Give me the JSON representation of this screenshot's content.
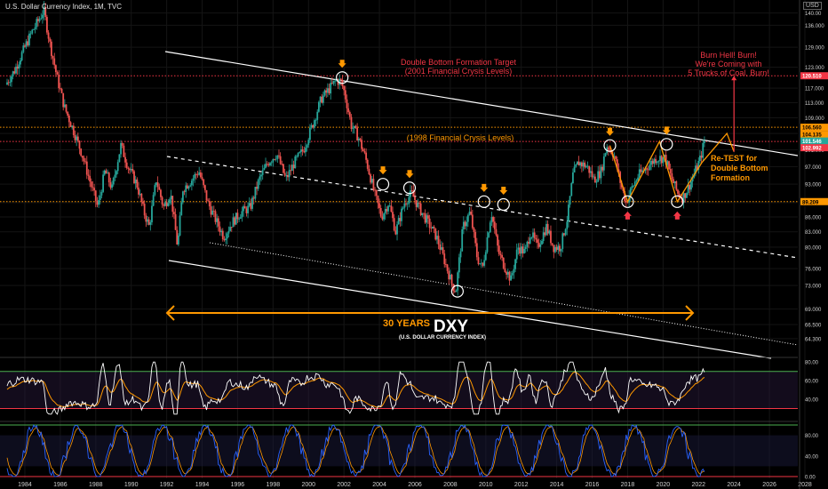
{
  "header": {
    "title": "U.S. Dollar Currency Index, 1M, TVC"
  },
  "axis_currency": "USD",
  "colors": {
    "background": "#000000",
    "candle_up": "#26a69a",
    "candle_down": "#ef5350",
    "annotation_orange": "#ff9800",
    "annotation_red": "#f23645",
    "white_line": "#ffffff",
    "rsi_line": "#ffffff",
    "rsi_signal": "#ff9800",
    "stoch_k": "#2962ff",
    "stoch_d": "#ff9800"
  },
  "price_labels": {
    "p1": "120.510",
    "p2": "106.560",
    "p3": "104.135",
    "p4": "101.546",
    "p5": "102.992",
    "p6": "89.209"
  },
  "annotations": {
    "target_line1": "Double Bottom Formation Target",
    "target_line2": "(2001 Financial Crysis Levels)",
    "level_1998": "(1998 Financial Crysis Levels)",
    "burn_line1": "Burn Hell! Burn!",
    "burn_line2": "We're Coming with",
    "burn_line3": "5 Trucks of Coal, Burn!",
    "retest_line1": "Re-TEST for",
    "retest_line2": "Double Bottom",
    "retest_line3": "Formation",
    "years_label": "30 YEARS",
    "dxy_label": "DXY",
    "dxy_sub": "(U.S. DOLLAR CURRENCY INDEX)"
  },
  "chart_data": {
    "type": "candlestick",
    "title": "U.S. Dollar Currency Index, 1M, TVC",
    "x_range": [
      1983,
      2028
    ],
    "x_ticks": [
      "1984",
      "1986",
      "1988",
      "1990",
      "1992",
      "1994",
      "1996",
      "1998",
      "2000",
      "2002",
      "2004",
      "2006",
      "2008",
      "2010",
      "2012",
      "2014",
      "2016",
      "2018",
      "2020",
      "2022",
      "2024",
      "2026",
      "2028"
    ],
    "y_scale": "log",
    "y_range": [
      62,
      142
    ],
    "y_ticks": [
      "140.00",
      "136.000",
      "129.000",
      "123.000",
      "117.000",
      "113.000",
      "109.000",
      "105.000",
      "101.000",
      "97.000",
      "93.000",
      "89.000",
      "86.000",
      "83.000",
      "80.000",
      "76.000",
      "73.000",
      "69.000",
      "66.500",
      "64.300"
    ],
    "series": [
      {
        "type": "close",
        "points": [
          [
            1983.0,
            118
          ],
          [
            1983.5,
            122
          ],
          [
            1984.0,
            128
          ],
          [
            1984.5,
            134
          ],
          [
            1984.9,
            138
          ],
          [
            1985.15,
            141
          ],
          [
            1985.5,
            130
          ],
          [
            1985.9,
            120
          ],
          [
            1986.3,
            112
          ],
          [
            1986.8,
            106
          ],
          [
            1987.3,
            100
          ],
          [
            1987.8,
            93
          ],
          [
            1988.2,
            88
          ],
          [
            1988.6,
            96
          ],
          [
            1989.0,
            92
          ],
          [
            1989.5,
            102
          ],
          [
            1989.9,
            97
          ],
          [
            1990.4,
            93
          ],
          [
            1990.8,
            87
          ],
          [
            1991.1,
            84
          ],
          [
            1991.5,
            94
          ],
          [
            1991.9,
            88
          ],
          [
            1992.3,
            91
          ],
          [
            1992.7,
            80
          ],
          [
            1993.0,
            92
          ],
          [
            1993.5,
            94
          ],
          [
            1993.9,
            96
          ],
          [
            1994.4,
            89
          ],
          [
            1994.9,
            85
          ],
          [
            1995.3,
            82
          ],
          [
            1995.8,
            85
          ],
          [
            1996.3,
            87
          ],
          [
            1996.8,
            88
          ],
          [
            1997.3,
            94
          ],
          [
            1997.8,
            98
          ],
          [
            1998.3,
            100
          ],
          [
            1998.8,
            94
          ],
          [
            1999.3,
            98
          ],
          [
            1999.8,
            101
          ],
          [
            2000.3,
            107
          ],
          [
            2000.8,
            114
          ],
          [
            2001.3,
            117
          ],
          [
            2001.6,
            119
          ],
          [
            2001.9,
            119
          ],
          [
            2002.1,
            116
          ],
          [
            2002.5,
            107
          ],
          [
            2002.9,
            104
          ],
          [
            2003.3,
            99
          ],
          [
            2003.8,
            91
          ],
          [
            2004.2,
            86
          ],
          [
            2004.6,
            89
          ],
          [
            2005.0,
            83
          ],
          [
            2005.5,
            89
          ],
          [
            2005.9,
            91
          ],
          [
            2006.3,
            88
          ],
          [
            2006.8,
            85
          ],
          [
            2007.3,
            82
          ],
          [
            2007.8,
            77
          ],
          [
            2008.2,
            73
          ],
          [
            2008.4,
            72
          ],
          [
            2008.8,
            84
          ],
          [
            2009.2,
            87
          ],
          [
            2009.6,
            78
          ],
          [
            2009.9,
            76
          ],
          [
            2010.4,
            87
          ],
          [
            2010.8,
            79
          ],
          [
            2011.2,
            76
          ],
          [
            2011.5,
            74
          ],
          [
            2011.9,
            80
          ],
          [
            2012.3,
            79
          ],
          [
            2012.6,
            83
          ],
          [
            2013.0,
            80
          ],
          [
            2013.5,
            84
          ],
          [
            2013.9,
            80
          ],
          [
            2014.3,
            80
          ],
          [
            2014.7,
            86
          ],
          [
            2015.0,
            95
          ],
          [
            2015.3,
            98
          ],
          [
            2015.8,
            97
          ],
          [
            2016.2,
            94
          ],
          [
            2016.6,
            96
          ],
          [
            2016.9,
            102
          ],
          [
            2017.3,
            100
          ],
          [
            2017.7,
            93
          ],
          [
            2018.0,
            89
          ],
          [
            2018.3,
            92
          ],
          [
            2018.7,
            95
          ],
          [
            2019.2,
            97
          ],
          [
            2019.7,
            99
          ],
          [
            2020.2,
            99
          ],
          [
            2020.5,
            95
          ],
          [
            2020.9,
            91
          ],
          [
            2021.2,
            90
          ],
          [
            2021.6,
            93
          ],
          [
            2021.9,
            96
          ],
          [
            2022.2,
            99
          ],
          [
            2022.4,
            103
          ]
        ]
      }
    ]
  }
}
